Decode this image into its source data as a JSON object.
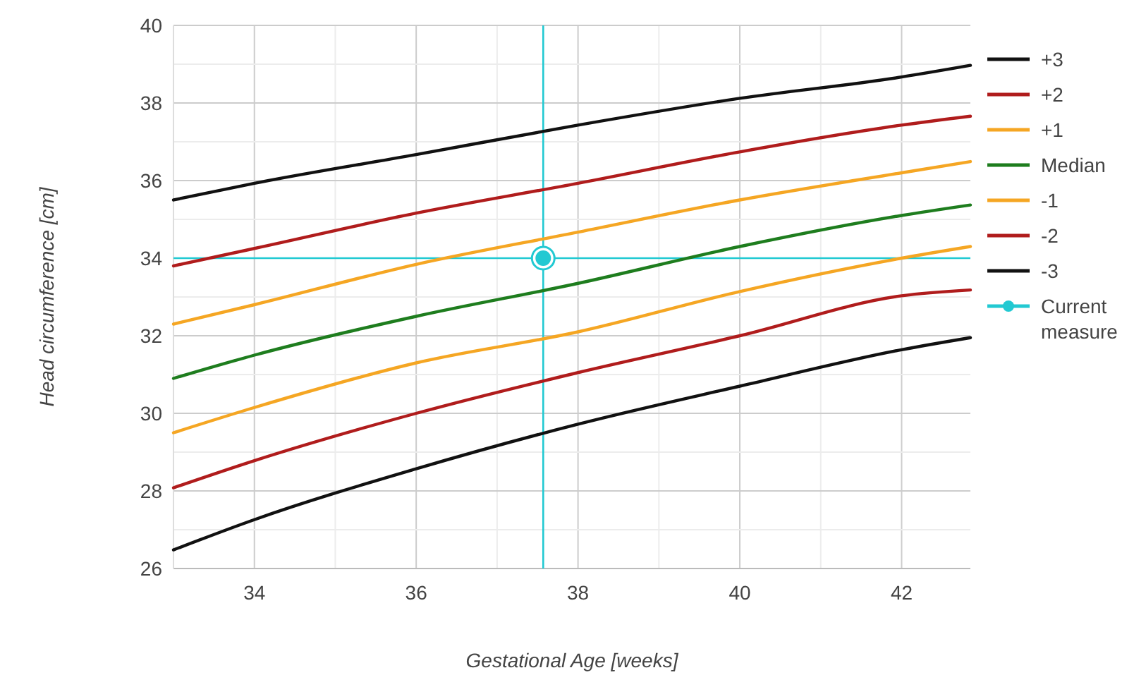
{
  "chart_data": {
    "type": "line",
    "xlabel": "Gestational Age [weeks]",
    "ylabel": "Head circumference [cm]",
    "x": [
      33,
      34,
      36,
      38,
      40,
      42,
      42.85
    ],
    "series": [
      {
        "name": "+3",
        "color": "#111111",
        "values": [
          35.5,
          35.93,
          36.67,
          37.43,
          38.12,
          38.67,
          38.97
        ]
      },
      {
        "name": "+2",
        "color": "#b01c1c",
        "values": [
          33.8,
          34.25,
          35.16,
          35.93,
          36.74,
          37.43,
          37.66
        ]
      },
      {
        "name": "+1",
        "color": "#f5a623",
        "values": [
          32.3,
          32.8,
          33.84,
          34.67,
          35.5,
          36.2,
          36.49
        ]
      },
      {
        "name": "Median",
        "color": "#1e7d1e",
        "values": [
          30.9,
          31.5,
          32.5,
          33.35,
          34.3,
          35.1,
          35.37
        ]
      },
      {
        "name": "-1",
        "color": "#f5a623",
        "values": [
          29.5,
          30.15,
          31.3,
          32.1,
          33.14,
          34.0,
          34.3
        ]
      },
      {
        "name": "-2",
        "color": "#b01c1c",
        "values": [
          28.08,
          28.78,
          30.0,
          31.05,
          32.0,
          33.03,
          33.18
        ]
      },
      {
        "name": "-3",
        "color": "#111111",
        "values": [
          26.48,
          27.26,
          28.57,
          29.72,
          30.7,
          31.64,
          31.95
        ]
      },
      {
        "name": "Current measure",
        "type": "scatter",
        "color": "#22c9d2",
        "x": [
          37.57
        ],
        "values": [
          34
        ],
        "marker": "circle"
      }
    ],
    "ref_lines": [
      {
        "axis": "x",
        "value": 37.57,
        "color": "#22c9d2"
      },
      {
        "axis": "y",
        "value": 34,
        "color": "#22c9d2"
      }
    ],
    "xlim": [
      33,
      42.85
    ],
    "ylim": [
      26,
      40
    ],
    "xticks": [
      34,
      {
        "value": 35,
        "label": null
      },
      36,
      {
        "value": 37,
        "label": null
      },
      38,
      {
        "value": 39,
        "label": null
      },
      40,
      {
        "value": 41,
        "label": null
      },
      42
    ],
    "yticks": [
      26,
      {
        "value": 27,
        "label": null
      },
      28,
      {
        "value": 29,
        "label": null
      },
      30,
      {
        "value": 31,
        "label": null
      },
      32,
      {
        "value": 33,
        "label": null
      },
      34,
      {
        "value": 35,
        "label": null
      },
      36,
      {
        "value": 37,
        "label": null
      },
      38,
      {
        "value": 39,
        "label": null
      },
      40
    ],
    "grid": true,
    "legend": "top right",
    "marker": "none",
    "line_style": "solid"
  }
}
